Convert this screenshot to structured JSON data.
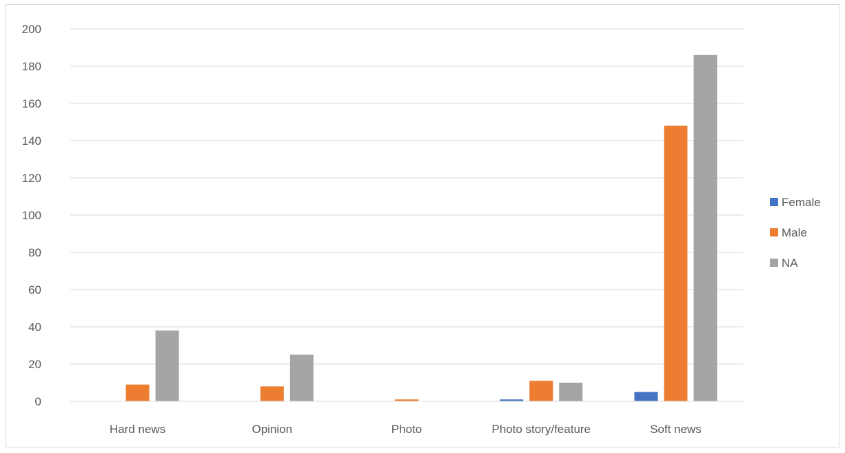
{
  "chart_data": {
    "type": "bar",
    "title": "",
    "xlabel": "",
    "ylabel": "",
    "categories": [
      "Hard news",
      "Opinion",
      "Photo",
      "Photo story/feature",
      "Soft news"
    ],
    "series": [
      {
        "name": "Female",
        "color": "#4472c4",
        "values": [
          0,
          0,
          0,
          1,
          5
        ]
      },
      {
        "name": "Male",
        "color": "#ed7d31",
        "values": [
          9,
          8,
          1,
          11,
          148
        ]
      },
      {
        "name": "NA",
        "color": "#a5a5a5",
        "values": [
          38,
          25,
          0,
          10,
          186
        ]
      }
    ],
    "ylim": [
      0,
      200
    ],
    "yticks": [
      "0",
      "20",
      "40",
      "60",
      "80",
      "100",
      "120",
      "140",
      "160",
      "180",
      "200"
    ],
    "grid": true,
    "legend_position": "right"
  }
}
